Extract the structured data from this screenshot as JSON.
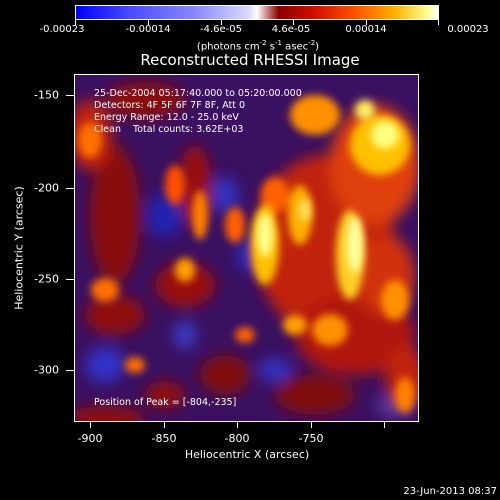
{
  "colorbar": {
    "ticks": [
      "-0.00023",
      "-0.00014",
      "-4.6e-05",
      "4.6e-05",
      "0.00014",
      "0.00023"
    ],
    "unit_main": "(photons cm",
    "unit_exp1": "-2",
    "unit_mid": " s",
    "unit_exp2": "-1",
    "unit_mid2": " asec",
    "unit_exp3": "-2",
    "unit_end": ")"
  },
  "title": "Reconstructed RHESSI Image",
  "annotations": {
    "line1": "25-Dec-2004 05:17:40.000 to 05:20:00.000",
    "line2": "Detectors: 4F 5F 6F 7F 8F, Att 0",
    "line3": "Energy Range: 12.0 - 25.0 keV",
    "line4": "Clean    Total counts: 3.62E+03",
    "peak": "Position of Peak = [-804,-235]"
  },
  "axes": {
    "xlabel": "Heliocentric X (arcsec)",
    "ylabel": "Heliocentric Y (arcsec)",
    "xticks": [
      "-900",
      "-850",
      "-800",
      "-750"
    ],
    "yticks": [
      "-150",
      "-200",
      "-250",
      "-300"
    ]
  },
  "timestamp": "23-Jun-2013 08:37",
  "colors": {
    "background": "#000000",
    "text": "#ffffff"
  }
}
